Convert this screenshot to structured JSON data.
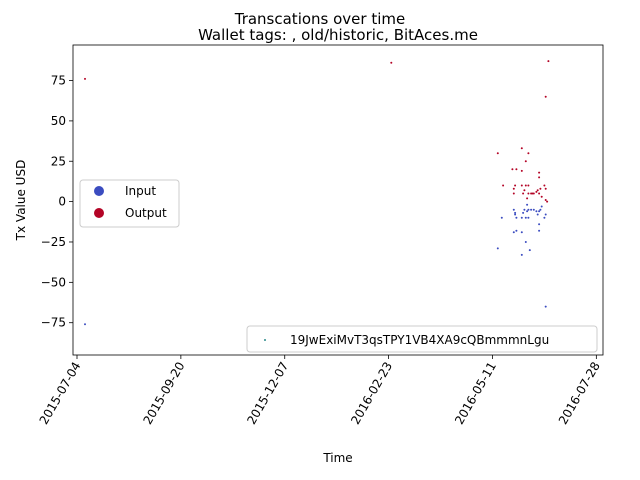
{
  "chart_data": {
    "type": "scatter",
    "suptitle": "Transcations over time",
    "title": "Wallet tags: , old/historic, BitAces.me",
    "xlabel": "Time",
    "ylabel": "Tx Value USD",
    "xlim": [
      "2015-07-01",
      "2016-08-02"
    ],
    "ylim": [
      -95,
      97
    ],
    "x_ticks": [
      "2015-07-04",
      "2015-09-20",
      "2015-12-07",
      "2016-02-23",
      "2016-05-11",
      "2016-07-28"
    ],
    "y_ticks": [
      -75,
      -50,
      -25,
      0,
      25,
      50,
      75
    ],
    "grid": false,
    "colors": {
      "input": "#3b4cc0",
      "output": "#b40426",
      "wallet": "#2a8a8a"
    },
    "legend_types": {
      "placement": "center-left",
      "entries": [
        {
          "label": "Input",
          "color": "#3b4cc0"
        },
        {
          "label": "Output",
          "color": "#b40426"
        }
      ]
    },
    "legend_wallet": {
      "placement": "lower-right",
      "entries": [
        {
          "label": "19JwExiMvT3qsTPY1VB4XA9cQBmmmnLgu",
          "color": "#2a8a8a"
        }
      ]
    },
    "series": [
      {
        "name": "Input",
        "color": "#3b4cc0",
        "points": [
          [
            "2015-07-10",
            -76
          ],
          [
            "2016-05-15",
            -29
          ],
          [
            "2016-05-18",
            -10
          ],
          [
            "2016-05-27",
            -19
          ],
          [
            "2016-05-27",
            -5
          ],
          [
            "2016-05-28",
            -7
          ],
          [
            "2016-05-28",
            -8
          ],
          [
            "2016-05-29",
            -10
          ],
          [
            "2016-05-29",
            -18
          ],
          [
            "2016-06-02",
            -33
          ],
          [
            "2016-06-02",
            -19
          ],
          [
            "2016-06-02",
            -10
          ],
          [
            "2016-06-03",
            -7
          ],
          [
            "2016-06-04",
            -5
          ],
          [
            "2016-06-05",
            -25
          ],
          [
            "2016-06-05",
            -10
          ],
          [
            "2016-06-06",
            -2
          ],
          [
            "2016-06-06",
            -6
          ],
          [
            "2016-06-07",
            -10
          ],
          [
            "2016-06-07",
            -5
          ],
          [
            "2016-06-08",
            -30
          ],
          [
            "2016-06-09",
            -5
          ],
          [
            "2016-06-11",
            -5
          ],
          [
            "2016-06-13",
            -6
          ],
          [
            "2016-06-14",
            -8
          ],
          [
            "2016-06-15",
            -14
          ],
          [
            "2016-06-15",
            -18
          ],
          [
            "2016-06-15",
            -6
          ],
          [
            "2016-06-16",
            -5
          ],
          [
            "2016-06-17",
            -3
          ],
          [
            "2016-06-19",
            -10
          ],
          [
            "2016-06-20",
            -65
          ],
          [
            "2016-06-20",
            -8
          ]
        ]
      },
      {
        "name": "Output",
        "color": "#b40426",
        "points": [
          [
            "2015-07-10",
            76
          ],
          [
            "2016-02-25",
            86
          ],
          [
            "2016-05-15",
            30
          ],
          [
            "2016-05-19",
            10
          ],
          [
            "2016-05-26",
            20
          ],
          [
            "2016-05-27",
            5
          ],
          [
            "2016-05-27",
            8
          ],
          [
            "2016-05-28",
            10
          ],
          [
            "2016-05-29",
            20
          ],
          [
            "2016-06-02",
            33
          ],
          [
            "2016-06-02",
            19
          ],
          [
            "2016-06-02",
            10
          ],
          [
            "2016-06-03",
            5
          ],
          [
            "2016-06-04",
            7
          ],
          [
            "2016-06-05",
            25
          ],
          [
            "2016-06-05",
            10
          ],
          [
            "2016-06-06",
            2
          ],
          [
            "2016-06-07",
            5
          ],
          [
            "2016-06-07",
            10
          ],
          [
            "2016-06-07",
            30
          ],
          [
            "2016-06-09",
            5
          ],
          [
            "2016-06-10",
            5
          ],
          [
            "2016-06-11",
            5
          ],
          [
            "2016-06-13",
            6
          ],
          [
            "2016-06-14",
            7
          ],
          [
            "2016-06-15",
            18
          ],
          [
            "2016-06-15",
            15
          ],
          [
            "2016-06-15",
            5
          ],
          [
            "2016-06-16",
            8
          ],
          [
            "2016-06-17",
            3
          ],
          [
            "2016-06-19",
            10
          ],
          [
            "2016-06-20",
            65
          ],
          [
            "2016-06-20",
            8
          ],
          [
            "2016-06-20",
            1
          ],
          [
            "2016-06-21",
            0
          ],
          [
            "2016-06-22",
            87
          ]
        ]
      }
    ]
  }
}
